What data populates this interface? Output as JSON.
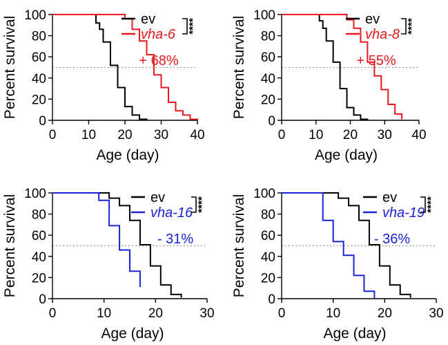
{
  "chart_data": [
    {
      "type": "line",
      "step": true,
      "xlabel": "Age (day)",
      "ylabel": "Percent survival",
      "xlim": [
        0,
        40
      ],
      "ylim": [
        0,
        100
      ],
      "x_ticks": [
        "0",
        "10",
        "20",
        "30",
        "40"
      ],
      "y_ticks": [
        "0",
        "20",
        "40",
        "60",
        "80",
        "100"
      ],
      "reference_line_y": 50,
      "annotation": "+ 68%",
      "annotation_color": "#e8191d",
      "significance": "****",
      "series": [
        {
          "name": "ev",
          "color": "#000000",
          "x": [
            0,
            10,
            12,
            13,
            14,
            16,
            18,
            20,
            22,
            24,
            26
          ],
          "y": [
            100,
            100,
            92,
            86,
            74,
            52,
            31,
            13,
            5,
            1,
            0
          ]
        },
        {
          "name": "vha-6",
          "color": "#e8191d",
          "x": [
            0,
            18,
            20,
            22,
            24,
            26,
            28,
            30,
            32,
            34,
            36,
            38,
            40
          ],
          "y": [
            100,
            100,
            96,
            86,
            75,
            62,
            43,
            31,
            17,
            9,
            5,
            1,
            0
          ]
        }
      ]
    },
    {
      "type": "line",
      "step": true,
      "xlabel": "Age (day)",
      "ylabel": "Percent survival",
      "xlim": [
        0,
        40
      ],
      "ylim": [
        0,
        100
      ],
      "x_ticks": [
        "0",
        "10",
        "20",
        "30",
        "40"
      ],
      "y_ticks": [
        "0",
        "20",
        "40",
        "60",
        "80",
        "100"
      ],
      "reference_line_y": 50,
      "annotation": "+ 55%",
      "annotation_color": "#e8191d",
      "significance": "****",
      "series": [
        {
          "name": "ev",
          "color": "#000000",
          "x": [
            0,
            9,
            11,
            12,
            13,
            15,
            17,
            19,
            21,
            23,
            25
          ],
          "y": [
            100,
            100,
            94,
            87,
            75,
            55,
            30,
            12,
            5,
            1,
            0
          ]
        },
        {
          "name": "vha-8",
          "color": "#e8191d",
          "x": [
            0,
            17,
            19,
            21,
            23,
            25,
            27,
            29,
            31,
            33,
            35
          ],
          "y": [
            100,
            100,
            95,
            87,
            74,
            55,
            42,
            29,
            15,
            6,
            1
          ]
        }
      ]
    },
    {
      "type": "line",
      "step": true,
      "xlabel": "Age (day)",
      "ylabel": "Percent survival",
      "xlim": [
        0,
        30
      ],
      "ylim": [
        0,
        100
      ],
      "x_ticks": [
        "0",
        "10",
        "20",
        "30"
      ],
      "y_ticks": [
        "0",
        "20",
        "40",
        "60",
        "80",
        "100"
      ],
      "reference_line_y": 50,
      "annotation": "- 31%",
      "annotation_color": "#1a21d6",
      "significance": "****",
      "series": [
        {
          "name": "ev",
          "color": "#000000",
          "x": [
            0,
            9,
            11,
            13,
            15,
            17,
            19,
            21,
            23,
            25
          ],
          "y": [
            100,
            100,
            95,
            88,
            74,
            51,
            31,
            13,
            4,
            1
          ]
        },
        {
          "name": "vha-16",
          "color": "#1a21d6",
          "x": [
            0,
            7,
            9,
            11,
            13,
            15,
            17
          ],
          "y": [
            100,
            100,
            93,
            69,
            46,
            26,
            11
          ]
        }
      ]
    },
    {
      "type": "line",
      "step": true,
      "xlabel": "Age (day)",
      "ylabel": "Percent survival",
      "xlim": [
        0,
        30
      ],
      "ylim": [
        0,
        100
      ],
      "x_ticks": [
        "0",
        "10",
        "20",
        "30"
      ],
      "y_ticks": [
        "0",
        "20",
        "40",
        "60",
        "80",
        "100"
      ],
      "reference_line_y": 50,
      "annotation": "- 36%",
      "annotation_color": "#1a21d6",
      "significance": "****",
      "series": [
        {
          "name": "ev",
          "color": "#000000",
          "x": [
            0,
            9,
            11,
            13,
            15,
            17,
            19,
            21,
            23,
            25
          ],
          "y": [
            100,
            100,
            95,
            88,
            74,
            51,
            31,
            13,
            4,
            1
          ]
        },
        {
          "name": "vha-19",
          "color": "#1a21d6",
          "x": [
            0,
            7,
            8,
            10,
            12,
            14,
            16,
            18
          ],
          "y": [
            100,
            100,
            74,
            54,
            41,
            22,
            7,
            0
          ]
        }
      ]
    }
  ]
}
